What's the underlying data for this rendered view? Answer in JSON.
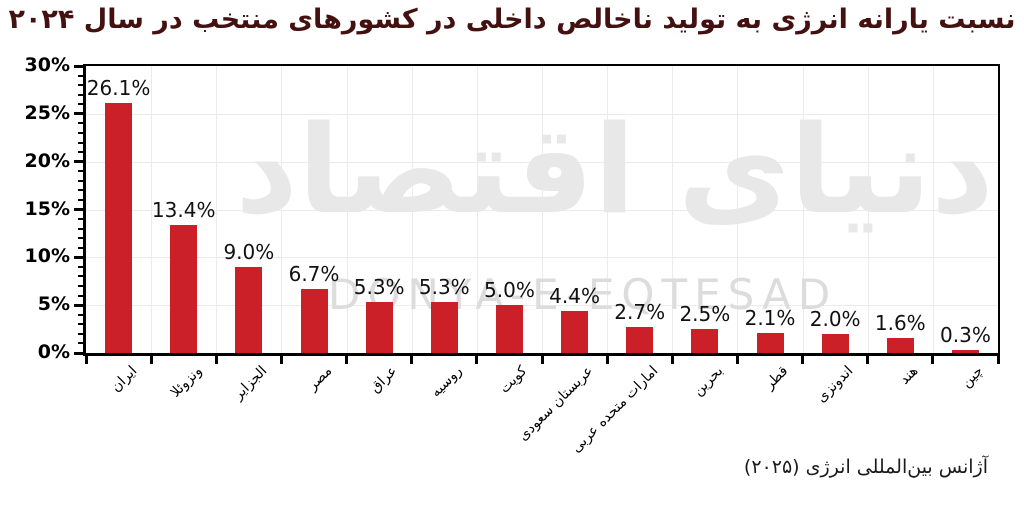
{
  "title": "نسبت یارانه انرژی به تولید ناخالص داخلی در کشورهای منتخب در سال ۲۰۲۴",
  "source_note": "آژانس بین‌المللی انرژی (۲۰۲۵)",
  "watermark": {
    "persian": "دنیای اقتصاد",
    "latin": "DONYA-E-EQTESAD"
  },
  "colors": {
    "bar": "#cb2027",
    "title": "#441111",
    "axis": "#000000",
    "grid": "#ebebee",
    "value_label": "#111111"
  },
  "chart_data": {
    "type": "bar",
    "title": "نسبت یارانه انرژی به تولید ناخالص داخلی در کشورهای منتخب در سال ۲۰۲۴",
    "categories": [
      "ایران",
      "ونزوئلا",
      "الجزایر",
      "مصر",
      "عراق",
      "روسیه",
      "کویت",
      "عربستان سعودی",
      "امارات متحده عربی",
      "بحرین",
      "قطر",
      "اندونزی",
      "هند",
      "چین"
    ],
    "values": [
      26.1,
      13.4,
      9.0,
      6.7,
      5.3,
      5.3,
      5.0,
      4.4,
      2.7,
      2.5,
      2.1,
      2.0,
      1.6,
      0.3
    ],
    "value_labels": [
      "26.1%",
      "13.4%",
      "9.0%",
      "6.7%",
      "5.3%",
      "5.3%",
      "5.0%",
      "4.4%",
      "2.7%",
      "2.5%",
      "2.1%",
      "2.0%",
      "1.6%",
      "0.3%"
    ],
    "xlabel": "",
    "ylabel": "",
    "ylim": [
      0,
      30
    ],
    "ytick_labels": [
      "30%",
      "25%",
      "20%",
      "15%",
      "10%",
      "5%",
      "0%"
    ],
    "ytick_values": [
      30,
      25,
      20,
      15,
      10,
      5,
      0
    ],
    "grid": true,
    "legend": false,
    "source": "آژانس بین‌المللی انرژی (۲۰۲۵)"
  }
}
